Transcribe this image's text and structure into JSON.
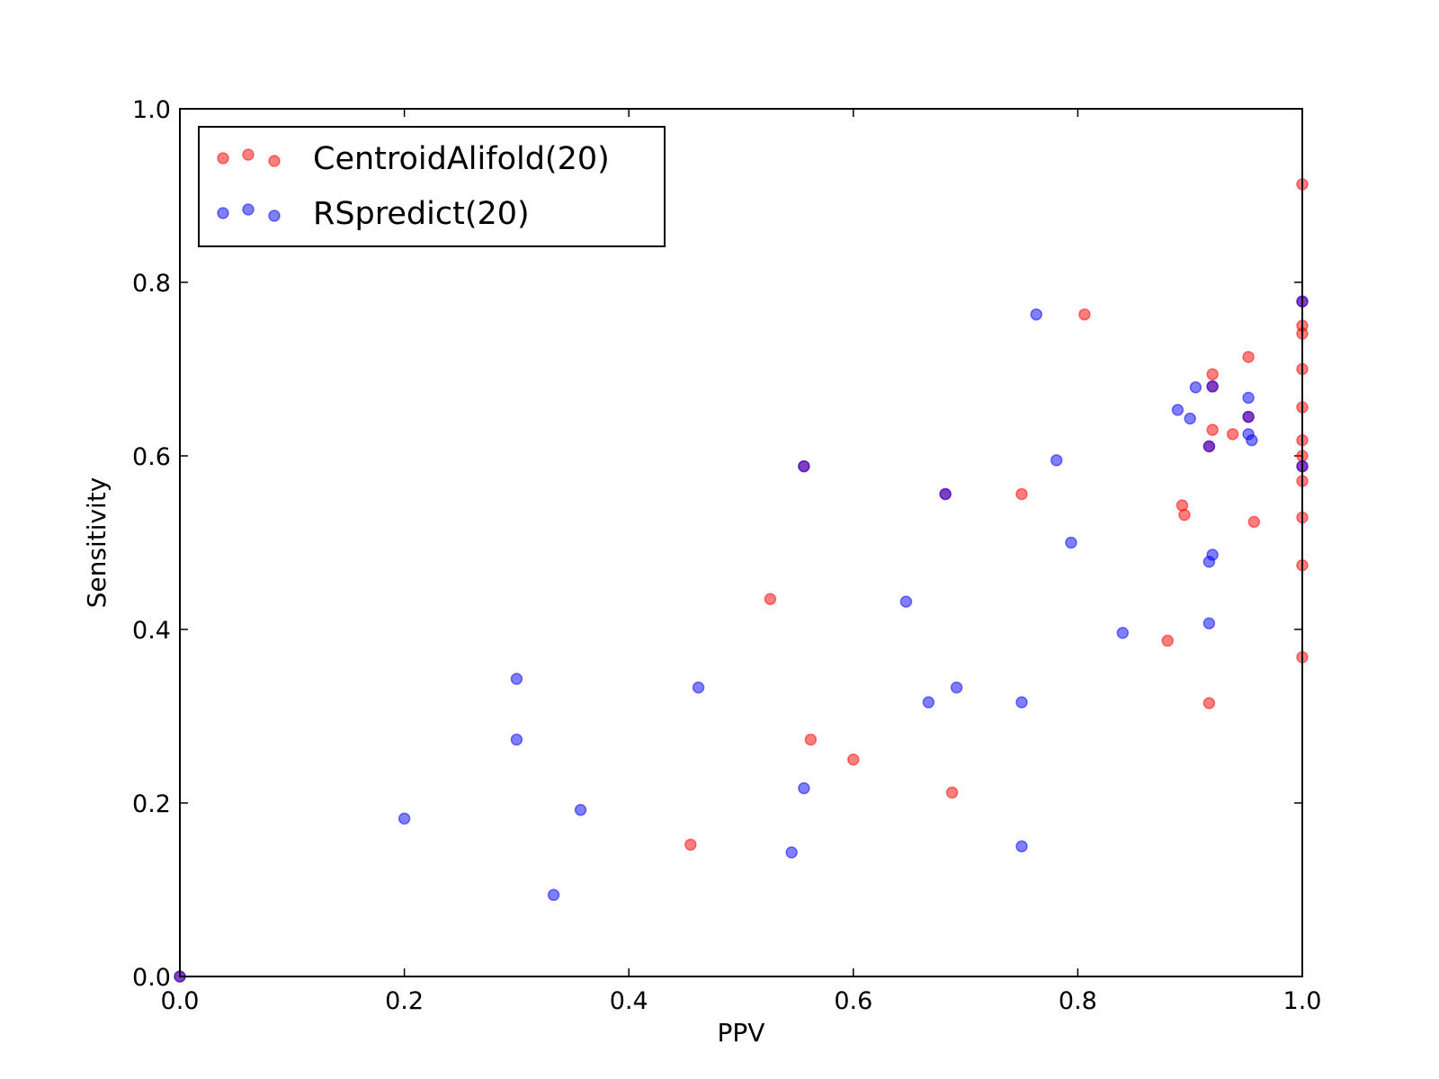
{
  "chart_data": {
    "type": "scatter",
    "xlabel": "PPV",
    "ylabel": "Sensitivity",
    "xlim": [
      0.0,
      1.0
    ],
    "ylim": [
      0.0,
      1.0
    ],
    "xticks": [
      "0.0",
      "0.2",
      "0.4",
      "0.6",
      "0.8",
      "1.0"
    ],
    "yticks": [
      "0.0",
      "0.2",
      "0.4",
      "0.6",
      "0.8",
      "1.0"
    ],
    "grid": false,
    "legend_placement": "top-left",
    "series": [
      {
        "name": "CentroidAlifold(20)",
        "color": "#ff0000",
        "points": [
          [
            0.0,
            0.0
          ],
          [
            0.455,
            0.152
          ],
          [
            0.526,
            0.435
          ],
          [
            0.562,
            0.273
          ],
          [
            0.6,
            0.25
          ],
          [
            0.556,
            0.588
          ],
          [
            0.682,
            0.556
          ],
          [
            0.688,
            0.212
          ],
          [
            0.75,
            0.556
          ],
          [
            0.806,
            0.763
          ],
          [
            0.88,
            0.387
          ],
          [
            0.893,
            0.543
          ],
          [
            0.895,
            0.532
          ],
          [
            0.917,
            0.315
          ],
          [
            0.917,
            0.611
          ],
          [
            0.92,
            0.63
          ],
          [
            0.92,
            0.694
          ],
          [
            0.92,
            0.68
          ],
          [
            0.938,
            0.625
          ],
          [
            0.952,
            0.714
          ],
          [
            0.952,
            0.645
          ],
          [
            0.957,
            0.524
          ],
          [
            1.0,
            0.913
          ],
          [
            1.0,
            0.778
          ],
          [
            1.0,
            0.75
          ],
          [
            1.0,
            0.741
          ],
          [
            1.0,
            0.7
          ],
          [
            1.0,
            0.656
          ],
          [
            1.0,
            0.618
          ],
          [
            1.0,
            0.6
          ],
          [
            1.0,
            0.588
          ],
          [
            1.0,
            0.571
          ],
          [
            1.0,
            0.529
          ],
          [
            1.0,
            0.474
          ],
          [
            1.0,
            0.368
          ]
        ]
      },
      {
        "name": "RSpredict(20)",
        "color": "#0000ff",
        "points": [
          [
            0.0,
            0.0
          ],
          [
            0.2,
            0.182
          ],
          [
            0.3,
            0.343
          ],
          [
            0.3,
            0.273
          ],
          [
            0.333,
            0.094
          ],
          [
            0.357,
            0.192
          ],
          [
            0.462,
            0.333
          ],
          [
            0.545,
            0.143
          ],
          [
            0.556,
            0.217
          ],
          [
            0.556,
            0.588
          ],
          [
            0.647,
            0.432
          ],
          [
            0.667,
            0.316
          ],
          [
            0.682,
            0.556
          ],
          [
            0.692,
            0.333
          ],
          [
            0.75,
            0.316
          ],
          [
            0.75,
            0.15
          ],
          [
            0.763,
            0.763
          ],
          [
            0.781,
            0.595
          ],
          [
            0.794,
            0.5
          ],
          [
            0.84,
            0.396
          ],
          [
            0.889,
            0.653
          ],
          [
            0.9,
            0.643
          ],
          [
            0.905,
            0.679
          ],
          [
            0.917,
            0.407
          ],
          [
            0.917,
            0.478
          ],
          [
            0.917,
            0.611
          ],
          [
            0.92,
            0.68
          ],
          [
            0.92,
            0.486
          ],
          [
            0.952,
            0.667
          ],
          [
            0.952,
            0.645
          ],
          [
            0.952,
            0.625
          ],
          [
            0.955,
            0.618
          ],
          [
            1.0,
            0.778
          ],
          [
            1.0,
            0.588
          ]
        ]
      }
    ]
  }
}
